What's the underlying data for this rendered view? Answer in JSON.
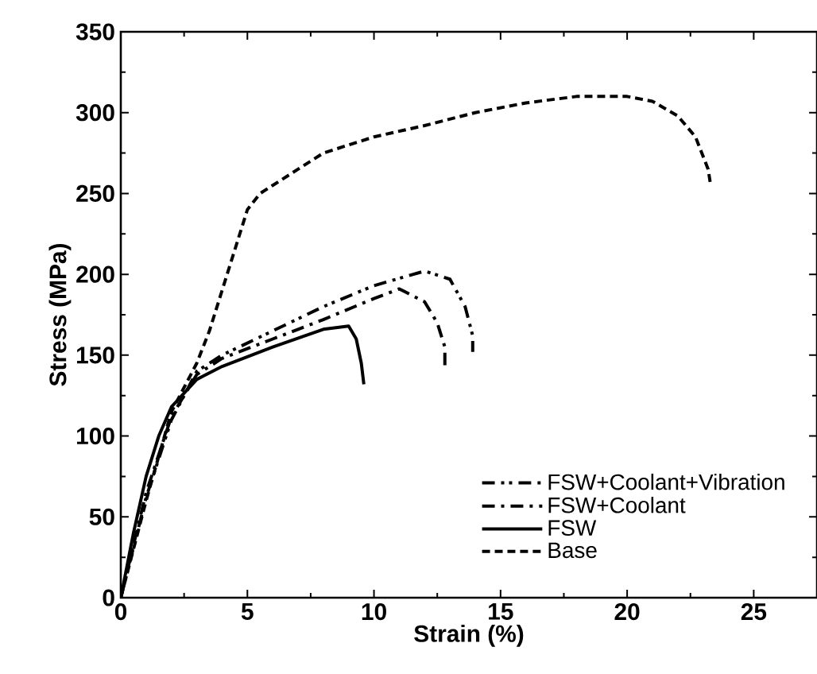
{
  "chart_data": {
    "type": "line",
    "xlabel": "Strain (%)",
    "ylabel": "Stress (MPa)",
    "xlim": [
      0,
      27.5
    ],
    "ylim": [
      0,
      350
    ],
    "xticks": [
      0,
      5,
      10,
      15,
      20,
      25
    ],
    "yticks": [
      0,
      50,
      100,
      150,
      200,
      250,
      300,
      350
    ],
    "grid": false,
    "legend": "bottom right",
    "marker": "none",
    "series": [
      {
        "name": "FSW+Coolant+Vibration",
        "color": "#000000",
        "line_style": "dashdotdot",
        "x": [
          0,
          1,
          2,
          3,
          4,
          6,
          8,
          10,
          12,
          13,
          13.6,
          13.9,
          13.9
        ],
        "values": [
          0,
          62,
          110,
          140,
          150,
          165,
          180,
          193,
          202,
          197,
          180,
          162,
          152
        ]
      },
      {
        "name": "FSW+Coolant",
        "color": "#000000",
        "line_style": "dashdot",
        "x": [
          0,
          1,
          2,
          3,
          4,
          6,
          8,
          10,
          11,
          12,
          12.5,
          12.8,
          12.8
        ],
        "values": [
          0,
          65,
          112,
          138,
          148,
          160,
          172,
          185,
          191,
          183,
          170,
          155,
          143
        ]
      },
      {
        "name": "FSW",
        "color": "#000000",
        "line_style": "solid",
        "x": [
          0,
          0.5,
          1,
          1.5,
          2,
          3,
          4,
          6,
          8,
          9,
          9.3,
          9.5,
          9.6
        ],
        "values": [
          0,
          40,
          75,
          100,
          118,
          135,
          143,
          155,
          166,
          168,
          160,
          145,
          132
        ]
      },
      {
        "name": "Base",
        "color": "#000000",
        "line_style": "dashed",
        "x": [
          0,
          1,
          2,
          3,
          3.5,
          4,
          4.5,
          5,
          5.5,
          6,
          7,
          8,
          10,
          12,
          14,
          16,
          18,
          20,
          21,
          22,
          22.7,
          23.2,
          23.3
        ],
        "values": [
          0,
          60,
          115,
          145,
          165,
          190,
          215,
          240,
          250,
          255,
          265,
          275,
          285,
          292,
          300,
          306,
          310,
          310,
          307,
          298,
          285,
          265,
          255
        ]
      }
    ]
  }
}
